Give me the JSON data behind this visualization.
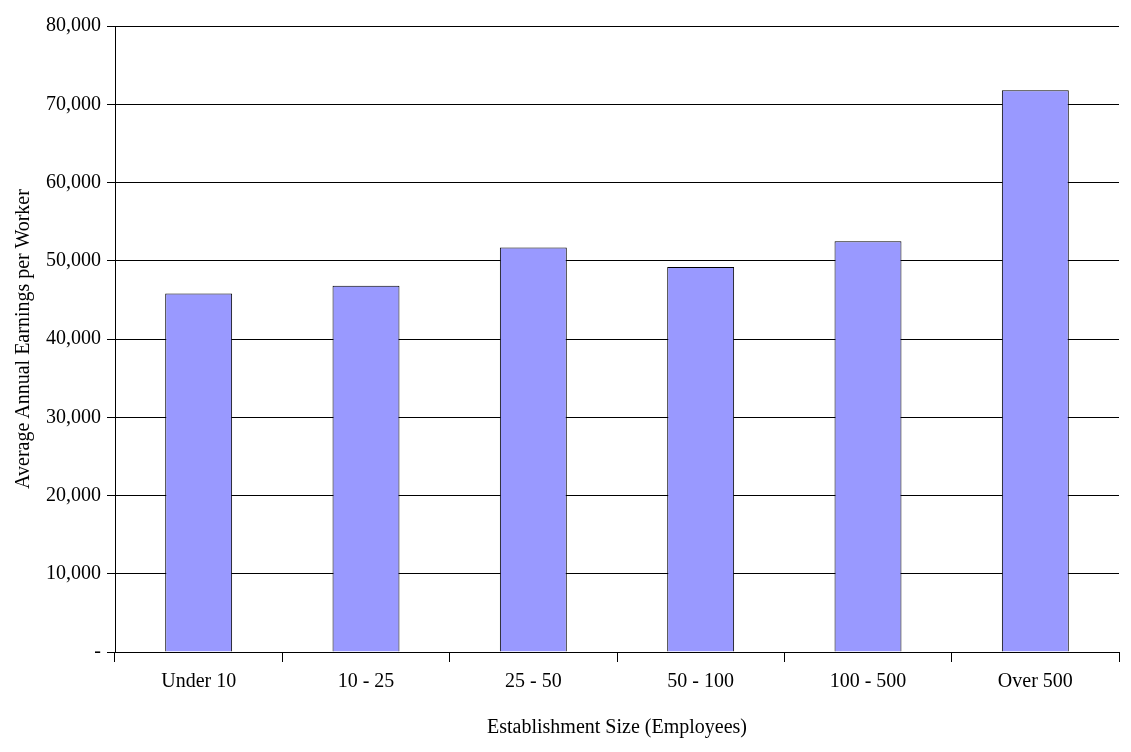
{
  "chart_data": {
    "type": "bar",
    "xlabel": "Establishment Size (Employees)",
    "ylabel": "Average Annual Earnings per Worker",
    "categories": [
      "Under 10",
      "10 - 25",
      "25 - 50",
      "50 - 100",
      "100 - 500",
      "Over 500"
    ],
    "values": [
      45800,
      46800,
      51700,
      49200,
      52500,
      71800
    ],
    "color": "#9999ff",
    "ylim": [
      0,
      80000
    ],
    "yticks": [
      {
        "value": 0,
        "label": "-"
      },
      {
        "value": 10000,
        "label": "10,000"
      },
      {
        "value": 20000,
        "label": "20,000"
      },
      {
        "value": 30000,
        "label": "30,000"
      },
      {
        "value": 40000,
        "label": "40,000"
      },
      {
        "value": 50000,
        "label": "50,000"
      },
      {
        "value": 60000,
        "label": "60,000"
      },
      {
        "value": 70000,
        "label": "70,000"
      },
      {
        "value": 80000,
        "label": "80,000"
      }
    ],
    "grid": "y",
    "legend": false
  }
}
